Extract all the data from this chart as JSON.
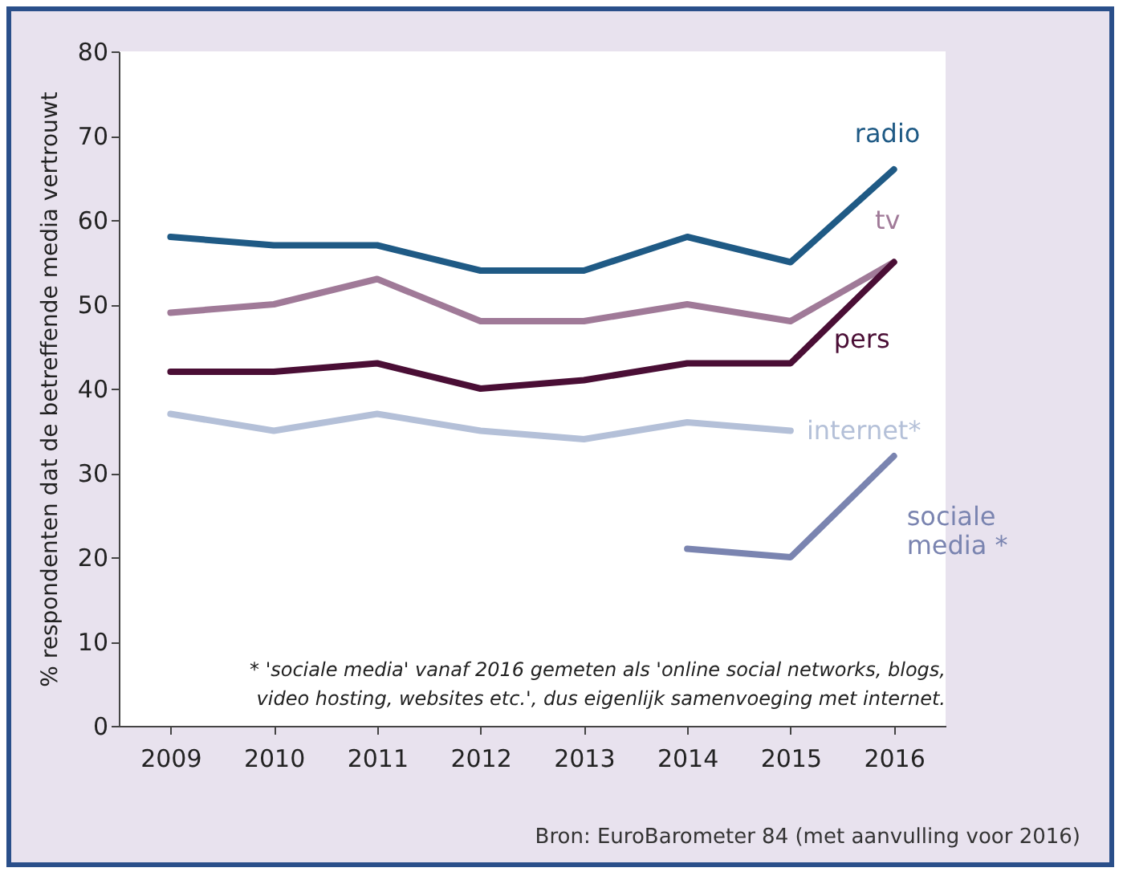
{
  "chart_data": {
    "type": "line",
    "ylabel": "% respondenten dat de betreffende media vertrouwt",
    "categories": [
      "2009",
      "2010",
      "2011",
      "2012",
      "2013",
      "2014",
      "2015",
      "2016"
    ],
    "series": [
      {
        "name": "radio",
        "color": "#1f5a85",
        "values": [
          58,
          57,
          57,
          54,
          54,
          58,
          55,
          66
        ]
      },
      {
        "name": "tv",
        "color": "#a07a98",
        "values": [
          49,
          50,
          53,
          48,
          48,
          50,
          48,
          55
        ]
      },
      {
        "name": "pers",
        "color": "#4a0e35",
        "values": [
          42,
          42,
          43,
          40,
          41,
          43,
          43,
          55
        ]
      },
      {
        "name": "internet*",
        "color": "#b4c0d8",
        "values": [
          37,
          35,
          37,
          35,
          34,
          36,
          35,
          null
        ]
      },
      {
        "name": "sociale media *",
        "color": "#7a84b0",
        "values": [
          null,
          null,
          null,
          null,
          null,
          21,
          20,
          32
        ]
      }
    ],
    "ylim": [
      0,
      80
    ],
    "yticks": [
      0,
      10,
      20,
      30,
      40,
      50,
      60,
      70,
      80
    ],
    "grid": false,
    "legend": false,
    "line_style": "solid",
    "annotations": [
      "* 'sociale media' vanaf 2016 gemeten als 'online social networks, blogs,\nvideo hosting, websites etc.', dus eigenlijk samenvoeging met internet.",
      "Bron: EuroBarometer 84 (met aanvulling voor 2016)"
    ]
  }
}
